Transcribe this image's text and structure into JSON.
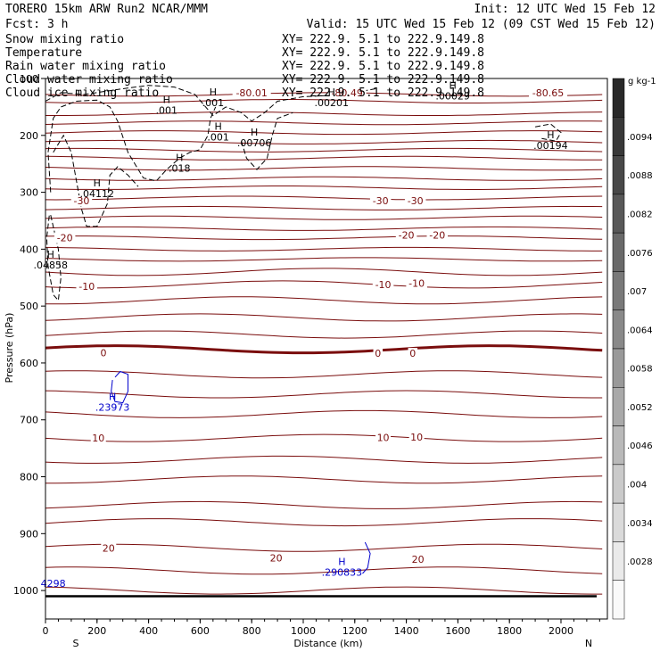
{
  "header": {
    "line1_left": "TORERO   15km ARW    Run2    NCAR/MMM",
    "line1_right": "Init: 12 UTC Wed 15 Feb 12",
    "line2_left": "Fcst:     3 h",
    "line2_right": "Valid: 15 UTC Wed 15 Feb 12 (09 CST Wed 15 Feb 12)"
  },
  "legend": [
    {
      "name": "Snow mixing ratio",
      "xy": "XY= 222.9.   5.1 to 222.9.149.8",
      "color": "#000000"
    },
    {
      "name": "Temperature",
      "xy": "XY= 222.9.   5.1 to 222.9.149.8",
      "color": "#cc0000"
    },
    {
      "name": "Rain water mixing ratio",
      "xy": "XY= 222.9.   5.1 to 222.9.149.8",
      "color": "#cc0000"
    },
    {
      "name": "Cloud water mixing ratio",
      "xy": "XY= 222.9.   5.1 to 222.9.149.8",
      "color": "#0000cc"
    },
    {
      "name": "Cloud ice mixing ratio",
      "xy": "XY= 222.9.   5.1 to 222.9.149.8",
      "color": "#000000"
    }
  ],
  "chart_data": {
    "type": "cross-section contour",
    "xlabel": "Distance (km)",
    "ylabel": "Pressure (hPa)",
    "xlim": [
      0,
      2180
    ],
    "ylim": [
      1050,
      100
    ],
    "xticks": [
      0,
      200,
      400,
      600,
      800,
      1000,
      1200,
      1400,
      1600,
      1800,
      2000
    ],
    "yticks": [
      100,
      200,
      300,
      400,
      500,
      600,
      700,
      800,
      900,
      1000
    ],
    "endpoint_left": "S",
    "endpoint_right": "N",
    "colorbar": {
      "unit": "g kg-1",
      "labels": [
        ".0094",
        ".0088",
        ".0082",
        ".0076",
        ".007",
        ".0064",
        ".0058",
        ".0052",
        ".0046",
        ".004",
        ".0034",
        ".0028"
      ]
    },
    "temperature_labels": [
      {
        "text": "-80.01",
        "x": 800,
        "p": 125
      },
      {
        "text": "-80.49",
        "x": 1170,
        "p": 125
      },
      {
        "text": "-80.65",
        "x": 1950,
        "p": 125
      },
      {
        "text": "-30",
        "x": 140,
        "p": 315
      },
      {
        "text": "-30",
        "x": 1300,
        "p": 315
      },
      {
        "text": "-30",
        "x": 1435,
        "p": 315
      },
      {
        "text": "-20",
        "x": 75,
        "p": 380
      },
      {
        "text": "-20",
        "x": 1400,
        "p": 375
      },
      {
        "text": "-20",
        "x": 1520,
        "p": 375
      },
      {
        "text": "-10",
        "x": 160,
        "p": 465
      },
      {
        "text": "-10",
        "x": 1310,
        "p": 462
      },
      {
        "text": "-10",
        "x": 1440,
        "p": 460
      },
      {
        "text": "0",
        "x": 225,
        "p": 582
      },
      {
        "text": "0",
        "x": 1290,
        "p": 583
      },
      {
        "text": "0",
        "x": 1425,
        "p": 583
      },
      {
        "text": "10",
        "x": 205,
        "p": 732
      },
      {
        "text": "10",
        "x": 1310,
        "p": 731
      },
      {
        "text": "10",
        "x": 1440,
        "p": 730
      },
      {
        "text": "20",
        "x": 245,
        "p": 925
      },
      {
        "text": "20",
        "x": 895,
        "p": 943
      },
      {
        "text": "20",
        "x": 1445,
        "p": 945
      }
    ],
    "temperature_levels_p": [
      128,
      140,
      162,
      178,
      195,
      212,
      226,
      240,
      258,
      276,
      292,
      310,
      328,
      345,
      364,
      380,
      400,
      418,
      440,
      462,
      490,
      520,
      550,
      576,
      620,
      655,
      690,
      732,
      770,
      805,
      850,
      880,
      925,
      965,
      1000
    ],
    "ground_p": 1010,
    "extrema": [
      {
        "text": "H",
        "value": ".001",
        "x": 470,
        "p": 143,
        "color": "#000000"
      },
      {
        "text": "H",
        "value": ".001",
        "x": 650,
        "p": 130,
        "color": "#000000"
      },
      {
        "text": "H",
        "value": ".00201",
        "x": 1110,
        "p": 130,
        "color": "#000000"
      },
      {
        "text": "H",
        "value": ".00029",
        "x": 1580,
        "p": 118,
        "color": "#000000"
      },
      {
        "text": "H",
        "value": ".001",
        "x": 670,
        "p": 190,
        "color": "#000000"
      },
      {
        "text": "H",
        "value": ".00706",
        "x": 810,
        "p": 200,
        "color": "#000000"
      },
      {
        "text": "H",
        "value": ".018",
        "x": 520,
        "p": 245,
        "color": "#000000"
      },
      {
        "text": "H",
        "value": ".00194",
        "x": 1960,
        "p": 205,
        "color": "#000000"
      },
      {
        "text": "H",
        "value": ".04112",
        "x": 200,
        "p": 290,
        "color": "#000000"
      },
      {
        "text": "H",
        "value": ".04858",
        "x": 20,
        "p": 415,
        "color": "#000000"
      },
      {
        "text": "H",
        "value": ".23973",
        "x": 260,
        "p": 665,
        "color": "#0000cc"
      },
      {
        "text": "H",
        "value": ".290833",
        "x": 1150,
        "p": 955,
        "color": "#0000cc"
      },
      {
        "text": "",
        "value": "4298",
        "x": 30,
        "p": 975,
        "color": "#0000cc"
      }
    ]
  }
}
